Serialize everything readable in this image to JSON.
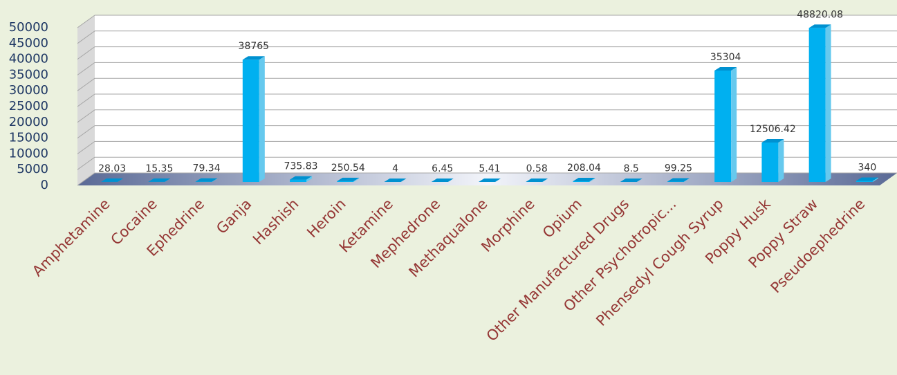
{
  "chart_data": {
    "type": "bar3d",
    "categories": [
      "Amphetamine",
      "Cocaine",
      "Ephedrine",
      "Ganja",
      "Hashish",
      "Heroin",
      "Ketamine",
      "Mephedrone",
      "Methaqualone",
      "Morphine",
      "Opium",
      "Other Manufactured Drugs",
      "Other Psychotropic...",
      "Phensedyl Cough Syrup",
      "Poppy Husk",
      "Poppy Straw",
      "Pseudoephedrine"
    ],
    "values": [
      28.03,
      15.35,
      79.34,
      38765,
      735.83,
      250.54,
      4,
      6.45,
      5.41,
      0.58,
      208.04,
      8.5,
      99.25,
      35304,
      12506.42,
      48820.08,
      340
    ],
    "color": "#00b0f0",
    "ylim": [
      0,
      50000
    ],
    "yticks": [
      0,
      5000,
      10000,
      15000,
      20000,
      25000,
      30000,
      35000,
      40000,
      45000,
      50000
    ],
    "grid": true
  }
}
